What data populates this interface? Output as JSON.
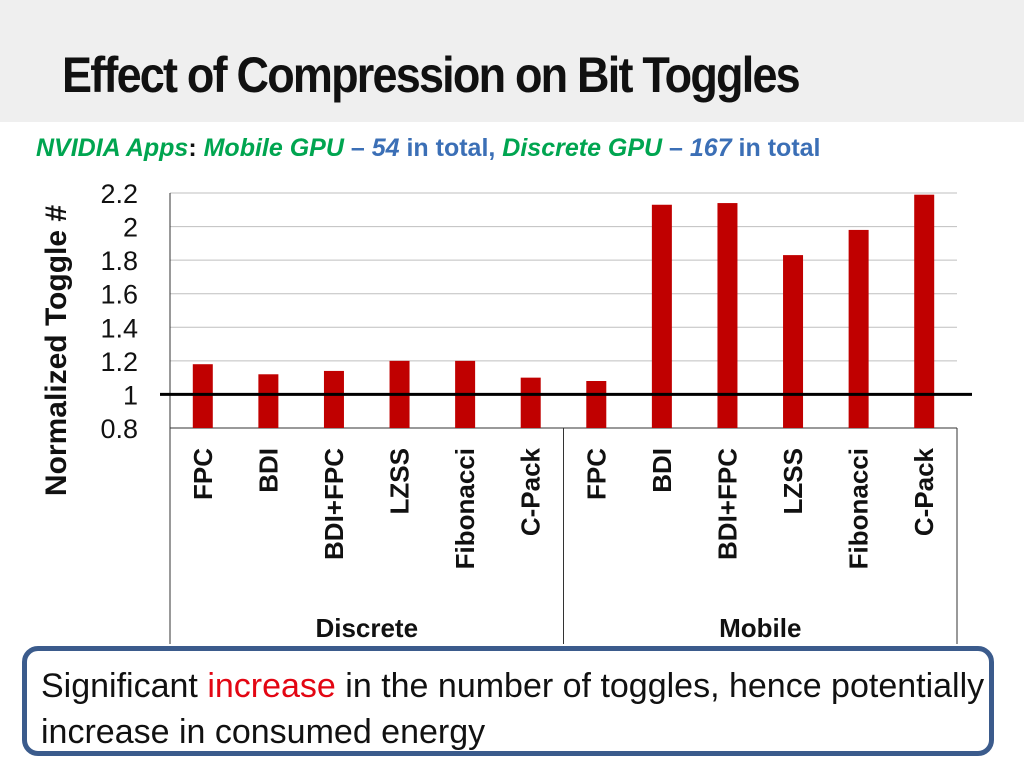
{
  "slide": {
    "title": "Effect of Compression on Bit Toggles",
    "subtitle": {
      "apps": "NVIDIA Apps",
      "colon": ":",
      "mobile_label": "Mobile GPU",
      "dash1": " – ",
      "mobile_count": "54",
      "in_total_1": " in total,",
      "discrete_label": "Discrete GPU",
      "dash2": " – ",
      "discrete_count": "167",
      "in_total_2": " in total"
    },
    "callout": {
      "text_before": "Significant ",
      "highlight": "increase",
      "text_after": " in the number of toggles, hence potentially increase in consumed energy"
    },
    "colors": {
      "bar": "#c00000",
      "highlight": "#e30613",
      "green": "#00a550",
      "blue": "#3b6fb6",
      "callout_border": "#3b5b8c"
    }
  },
  "chart_data": {
    "type": "bar",
    "ylabel": "Normalized Toggle #",
    "ylim": [
      0.8,
      2.2
    ],
    "yticks": [
      "2.2",
      "2",
      "1.8",
      "1.6",
      "1.4",
      "1.2",
      "1",
      "0.8"
    ],
    "reference_line": 1,
    "grid": true,
    "groups": [
      {
        "name": "Discrete",
        "categories": [
          "FPC",
          "BDI",
          "BDI+FPC",
          "LZSS",
          "Fibonacci",
          "C-Pack"
        ],
        "values": [
          1.18,
          1.12,
          1.14,
          1.2,
          1.2,
          1.1
        ]
      },
      {
        "name": "Mobile",
        "categories": [
          "FPC",
          "BDI",
          "BDI+FPC",
          "LZSS",
          "Fibonacci",
          "C-Pack"
        ],
        "values": [
          1.08,
          2.13,
          2.14,
          1.83,
          1.98,
          2.19
        ]
      }
    ]
  }
}
